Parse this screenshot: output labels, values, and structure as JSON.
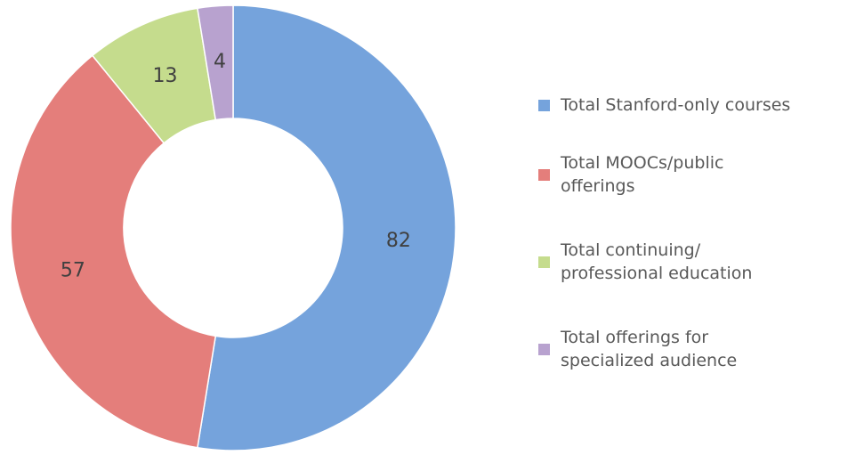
{
  "chart_data": {
    "type": "donut",
    "categories": [
      "Total Stanford-only courses",
      "Total MOOCs/public offerings",
      "Total continuing/ professional education",
      "Total offerings for specialized audience"
    ],
    "values": [
      82,
      57,
      13,
      4
    ],
    "colors": [
      "#75a3dc",
      "#e47e7b",
      "#c5dc8d",
      "#b8a2cf"
    ],
    "legend": "right"
  }
}
